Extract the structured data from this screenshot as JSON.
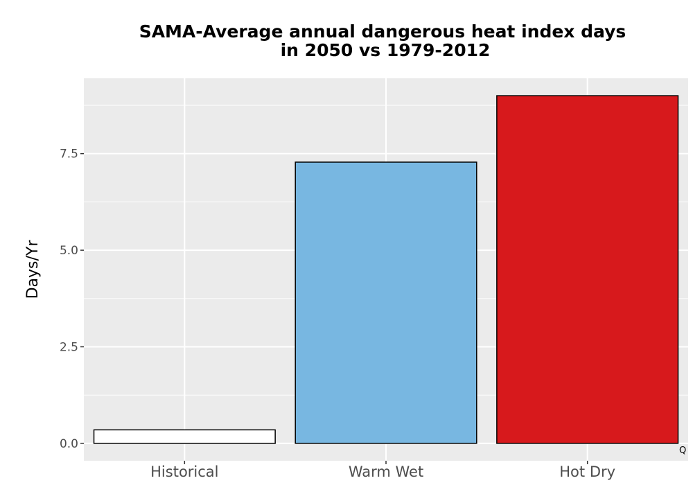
{
  "chart_data": {
    "type": "bar",
    "title": [
      "SAMA-Average annual dangerous heat index days",
      "in 2050 vs 1979-2012"
    ],
    "xlabel": "",
    "ylabel": "Days/Yr",
    "categories": [
      "Historical",
      "Warm Wet",
      "Hot Dry"
    ],
    "values": [
      0.35,
      7.28,
      9.0
    ],
    "colors": [
      "#ffffff",
      "#78b7e1",
      "#d7191c"
    ],
    "bar_outline_color": "#000000",
    "yticks": [
      0.0,
      2.5,
      5.0,
      7.5
    ],
    "ytick_labels": [
      "0.0",
      "2.5",
      "5.0",
      "7.5"
    ],
    "ylim": [
      -0.45,
      9.45
    ],
    "grid": true,
    "panel_background": "#ebebeb",
    "corner_note": "Q"
  }
}
